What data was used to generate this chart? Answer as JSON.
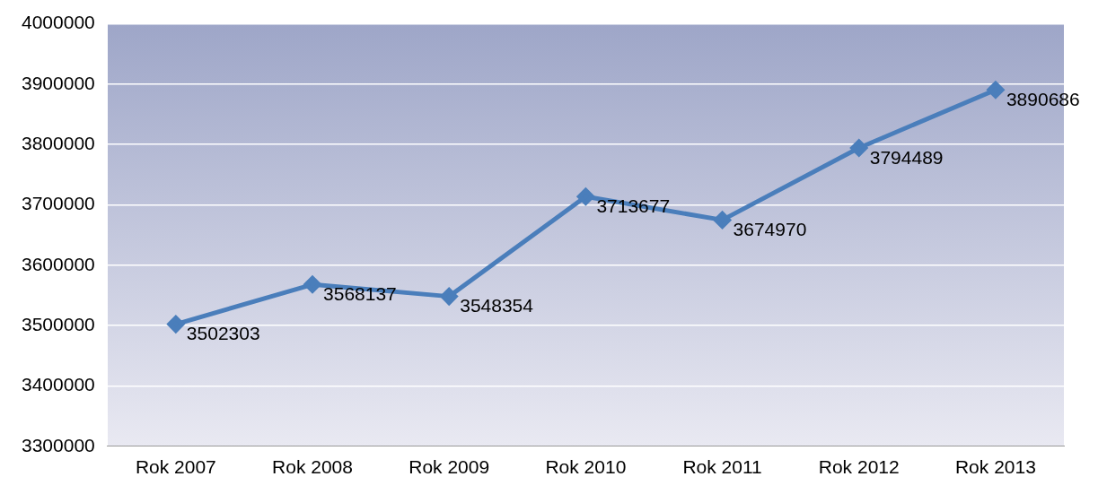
{
  "chart_data": {
    "type": "line",
    "categories": [
      "Rok 2007",
      "Rok 2008",
      "Rok 2009",
      "Rok 2010",
      "Rok 2011",
      "Rok 2012",
      "Rok 2013"
    ],
    "series": [
      {
        "color": "#4a7ebb",
        "values": [
          3502303,
          3568137,
          3548354,
          3713677,
          3674970,
          3794489,
          3890686
        ]
      }
    ],
    "ylim": [
      3300000,
      4000000
    ],
    "yticks": [
      3300000,
      3400000,
      3500000,
      3600000,
      3700000,
      3800000,
      3900000,
      4000000
    ],
    "grid": "y",
    "legend": false,
    "marker": "diamond",
    "line_style": "solid",
    "data_labels": true
  }
}
